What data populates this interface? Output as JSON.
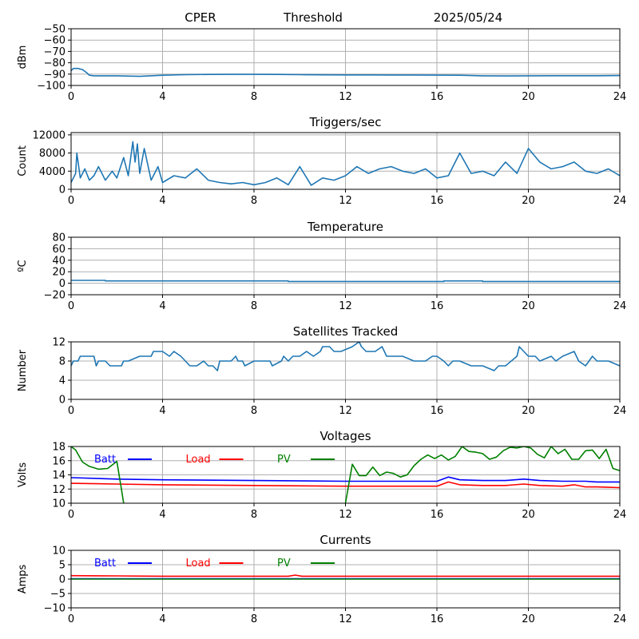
{
  "header": {
    "site": "CPER",
    "label": "Threshold",
    "date": "2025/05/24"
  },
  "colors": {
    "default": "#1f77b4",
    "batt": "#0000ff",
    "load": "#ff0000",
    "pv": "#008000",
    "grid": "#b0b0b0"
  },
  "chart_data": [
    {
      "id": "threshold",
      "type": "line",
      "title": "",
      "xlabel": "",
      "ylabel": "dBm",
      "xlim": [
        0,
        24
      ],
      "ylim": [
        -100,
        -50
      ],
      "xticks": [
        0,
        4,
        8,
        12,
        16,
        20,
        24
      ],
      "yticks": [
        -100,
        -90,
        -80,
        -70,
        -60,
        -50
      ],
      "grid": true,
      "series": [
        {
          "name": "",
          "color": "#1f77b4",
          "x": [
            0,
            0.1,
            0.3,
            0.5,
            0.7,
            0.8,
            1,
            2,
            3,
            4,
            5,
            6,
            7,
            8,
            9,
            10,
            11,
            12,
            13,
            14,
            15,
            16,
            17,
            18,
            19,
            20,
            21,
            22,
            23,
            24
          ],
          "y": [
            -87,
            -85,
            -85,
            -86,
            -89,
            -91,
            -91.5,
            -91.5,
            -92,
            -91,
            -90.5,
            -90.3,
            -90.2,
            -90.2,
            -90.3,
            -90.5,
            -90.6,
            -90.7,
            -90.7,
            -90.8,
            -90.8,
            -90.9,
            -91,
            -91.5,
            -91.6,
            -91.5,
            -91.4,
            -91.4,
            -91.4,
            -91.3
          ]
        }
      ]
    },
    {
      "id": "triggers",
      "type": "line",
      "title": "Triggers/sec",
      "xlabel": "",
      "ylabel": "Count",
      "xlim": [
        0,
        24
      ],
      "ylim": [
        0,
        12500
      ],
      "xticks": [
        0,
        4,
        8,
        12,
        16,
        20,
        24
      ],
      "yticks": [
        0,
        4000,
        8000,
        12000
      ],
      "grid": true,
      "series": [
        {
          "name": "",
          "color": "#1f77b4",
          "x": [
            0,
            0.2,
            0.25,
            0.4,
            0.6,
            0.8,
            1.0,
            1.2,
            1.5,
            1.8,
            2.0,
            2.3,
            2.5,
            2.7,
            2.8,
            2.9,
            3.0,
            3.2,
            3.5,
            3.8,
            4.0,
            4.5,
            5.0,
            5.5,
            6.0,
            6.5,
            7.0,
            7.5,
            8.0,
            8.5,
            9.0,
            9.5,
            10.0,
            10.5,
            11.0,
            11.5,
            12.0,
            12.5,
            13.0,
            13.5,
            14.0,
            14.5,
            15.0,
            15.5,
            16.0,
            16.5,
            17.0,
            17.5,
            18.0,
            18.5,
            19.0,
            19.5,
            20.0,
            20.5,
            21.0,
            21.5,
            22.0,
            22.5,
            23.0,
            23.5,
            24.0
          ],
          "y": [
            1500,
            3500,
            8000,
            2500,
            4500,
            2000,
            3000,
            5000,
            2000,
            4000,
            2500,
            7000,
            3000,
            10500,
            6000,
            10000,
            3500,
            9000,
            2000,
            5000,
            1500,
            3000,
            2500,
            4500,
            2000,
            1500,
            1200,
            1500,
            1000,
            1500,
            2500,
            1000,
            5000,
            900,
            2500,
            2000,
            3000,
            5000,
            3500,
            4500,
            5000,
            4000,
            3500,
            4500,
            2500,
            3000,
            8000,
            3500,
            4000,
            3000,
            6000,
            3500,
            9000,
            6000,
            4500,
            5000,
            6000,
            4000,
            3500,
            4500,
            3000
          ]
        }
      ]
    },
    {
      "id": "temperature",
      "type": "line",
      "title": "Temperature",
      "xlabel": "",
      "ylabel": "ºC",
      "xlim": [
        0,
        24
      ],
      "ylim": [
        -20,
        80
      ],
      "xticks": [
        0,
        4,
        8,
        12,
        16,
        20,
        24
      ],
      "yticks": [
        -20,
        0,
        20,
        40,
        60,
        80
      ],
      "grid": true,
      "series": [
        {
          "name": "",
          "color": "#1f77b4",
          "x": [
            0,
            1.5,
            1.5,
            9.5,
            9.5,
            16.3,
            16.3,
            18,
            18,
            24
          ],
          "y": [
            5,
            5,
            4,
            4,
            3,
            3,
            4,
            4,
            3,
            3
          ]
        }
      ]
    },
    {
      "id": "satellites",
      "type": "line",
      "title": "Satellites Tracked",
      "xlabel": "",
      "ylabel": "Number",
      "xlim": [
        0,
        24
      ],
      "ylim": [
        0,
        12
      ],
      "xticks": [
        0,
        4,
        8,
        12,
        16,
        20,
        24
      ],
      "yticks": [
        0,
        4,
        8,
        12
      ],
      "grid": true,
      "series": [
        {
          "name": "",
          "color": "#1f77b4",
          "x": [
            0,
            0.1,
            0.3,
            0.4,
            1.0,
            1.1,
            1.2,
            1.5,
            1.7,
            2.2,
            2.3,
            2.5,
            3.0,
            3.5,
            3.6,
            4.0,
            4.3,
            4.5,
            4.8,
            5.0,
            5.2,
            5.5,
            5.8,
            6.0,
            6.2,
            6.4,
            6.5,
            7.0,
            7.2,
            7.3,
            7.5,
            7.6,
            8.0,
            8.3,
            8.7,
            8.8,
            9.2,
            9.3,
            9.5,
            9.7,
            10.0,
            10.3,
            10.6,
            10.9,
            11.0,
            11.3,
            11.5,
            11.8,
            12.3,
            12.6,
            12.7,
            12.9,
            13.0,
            13.3,
            13.6,
            13.7,
            13.8,
            14.0,
            14.5,
            15.0,
            15.5,
            15.8,
            16.0,
            16.3,
            16.5,
            16.7,
            17.0,
            17.5,
            18.0,
            18.5,
            18.7,
            19.0,
            19.5,
            19.6,
            19.8,
            20.0,
            20.3,
            20.5,
            21.0,
            21.2,
            21.5,
            22.0,
            22.2,
            22.5,
            22.8,
            23.0,
            23.5,
            24.0
          ],
          "y": [
            7,
            8,
            8,
            9,
            9,
            7,
            8,
            8,
            7,
            7,
            8,
            8,
            9,
            9,
            10,
            10,
            9,
            10,
            9,
            8,
            7,
            7,
            8,
            7,
            7,
            6,
            8,
            8,
            9,
            8,
            8,
            7,
            8,
            8,
            8,
            7,
            8,
            9,
            8,
            9,
            9,
            10,
            9,
            10,
            11,
            11,
            10,
            10,
            11,
            12,
            11,
            10,
            10,
            10,
            11,
            10,
            9,
            9,
            9,
            8,
            8,
            9,
            9,
            8,
            7,
            8,
            8,
            7,
            7,
            6,
            7,
            7,
            9,
            11,
            10,
            9,
            9,
            8,
            9,
            8,
            9,
            10,
            8,
            7,
            9,
            8,
            8,
            7
          ]
        }
      ]
    },
    {
      "id": "voltages",
      "type": "line",
      "title": "Voltages",
      "xlabel": "",
      "ylabel": "Volts",
      "xlim": [
        0,
        24
      ],
      "ylim": [
        10,
        18
      ],
      "xticks": [
        0,
        4,
        8,
        12,
        16,
        20,
        24
      ],
      "yticks": [
        10,
        12,
        14,
        16,
        18
      ],
      "grid": true,
      "legend": "top-left",
      "series": [
        {
          "name": "Batt",
          "color": "#0000ff",
          "x": [
            0,
            2,
            4,
            8,
            12,
            16,
            16.5,
            17,
            18,
            19,
            19.8,
            20.5,
            21.5,
            22.5,
            23,
            24
          ],
          "y": [
            13.6,
            13.4,
            13.3,
            13.2,
            13.1,
            13.1,
            13.7,
            13.3,
            13.2,
            13.2,
            13.4,
            13.2,
            13.1,
            13.1,
            13.0,
            13.0
          ]
        },
        {
          "name": "Load",
          "color": "#ff0000",
          "x": [
            0,
            2,
            4,
            8,
            12,
            16,
            16.5,
            17,
            18,
            19,
            19.8,
            20.5,
            21.5,
            22,
            22.5,
            23,
            24
          ],
          "y": [
            12.8,
            12.7,
            12.6,
            12.5,
            12.4,
            12.4,
            13.0,
            12.6,
            12.5,
            12.5,
            12.7,
            12.5,
            12.4,
            12.6,
            12.3,
            12.3,
            12.2
          ]
        },
        {
          "name": "PV",
          "color": "#008000",
          "x": [
            0,
            0.2,
            0.5,
            0.8,
            1.2,
            1.6,
            2.0,
            2.2,
            2.3
          ],
          "y": [
            18,
            17.5,
            15.8,
            15.2,
            14.8,
            14.9,
            15.9,
            12.0,
            10.0
          ]
        },
        {
          "name": "PV",
          "color": "#008000",
          "x": [
            12,
            12.3,
            12.6,
            12.9,
            13.2,
            13.5,
            13.8,
            14.1,
            14.4,
            14.7,
            15.0,
            15.3,
            15.6,
            15.9,
            16.2,
            16.5,
            16.8,
            17.1,
            17.4,
            17.7,
            18.0,
            18.3,
            18.6,
            18.9,
            19.2,
            19.5,
            19.8,
            20.1,
            20.4,
            20.7,
            21.0,
            21.3,
            21.6,
            21.9,
            22.2,
            22.5,
            22.8,
            23.1,
            23.4,
            23.7,
            24.0
          ],
          "y": [
            10.0,
            15.5,
            13.9,
            13.9,
            15.1,
            13.9,
            14.4,
            14.2,
            13.7,
            14.0,
            15.3,
            16.2,
            16.8,
            16.3,
            16.8,
            16.1,
            16.6,
            18.0,
            17.3,
            17.2,
            17.0,
            16.2,
            16.5,
            17.4,
            17.9,
            17.8,
            18.0,
            17.8,
            16.9,
            16.4,
            18.0,
            17.0,
            17.6,
            16.2,
            16.2,
            17.4,
            17.5,
            16.3,
            17.6,
            14.9,
            14.6
          ]
        }
      ]
    },
    {
      "id": "currents",
      "type": "line",
      "title": "Currents",
      "xlabel": "",
      "ylabel": "Amps",
      "xlim": [
        0,
        24
      ],
      "ylim": [
        -10,
        10
      ],
      "xticks": [
        0,
        4,
        8,
        12,
        16,
        20,
        24
      ],
      "yticks": [
        -10,
        -5,
        0,
        5,
        10
      ],
      "grid": true,
      "legend": "top-left",
      "series": [
        {
          "name": "Batt",
          "color": "#0000ff",
          "x": [
            0,
            24
          ],
          "y": [
            0.1,
            0.1
          ]
        },
        {
          "name": "Load",
          "color": "#ff0000",
          "x": [
            0,
            2,
            4,
            8,
            9.5,
            9.8,
            10.1,
            12,
            16,
            20,
            24
          ],
          "y": [
            1.2,
            1.1,
            1.0,
            1.0,
            1.0,
            1.4,
            1.0,
            1.0,
            1.0,
            1.0,
            1.0
          ]
        },
        {
          "name": "PV",
          "color": "#008000",
          "x": [
            0,
            24
          ],
          "y": [
            0.0,
            0.0
          ]
        }
      ]
    }
  ]
}
